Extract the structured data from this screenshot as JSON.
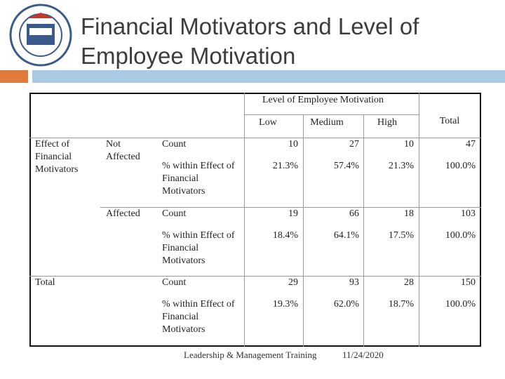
{
  "header": {
    "title_lines": [
      "Financial Motivators and Level of",
      "Employee Motivation"
    ]
  },
  "table": {
    "group_header": "Level of Employee Motivation",
    "columns": [
      "Low",
      "Medium",
      "High",
      "Total"
    ],
    "row_group": "Effect of Financial Motivators",
    "rows": [
      {
        "label": "Not Affected",
        "count_label": "Count",
        "count": [
          10,
          27,
          10,
          47
        ],
        "pct_label": "% within Effect of Financial Motivators",
        "pct": [
          "21.3%",
          "57.4%",
          "21.3%",
          "100.0%"
        ]
      },
      {
        "label": "Affected",
        "count_label": "Count",
        "count": [
          19,
          66,
          18,
          103
        ],
        "pct_label": "% within Effect of Financial Motivators",
        "pct": [
          "18.4%",
          "64.1%",
          "17.5%",
          "100.0%"
        ]
      },
      {
        "label": "Total",
        "count_label": "Count",
        "count": [
          29,
          93,
          28,
          150
        ],
        "pct_label": "% within Effect of Financial Motivators",
        "pct": [
          "19.3%",
          "62.0%",
          "18.7%",
          "100.0%"
        ]
      }
    ]
  },
  "footer": {
    "text": "Leadership & Management Training",
    "date": "11/24/2020"
  }
}
